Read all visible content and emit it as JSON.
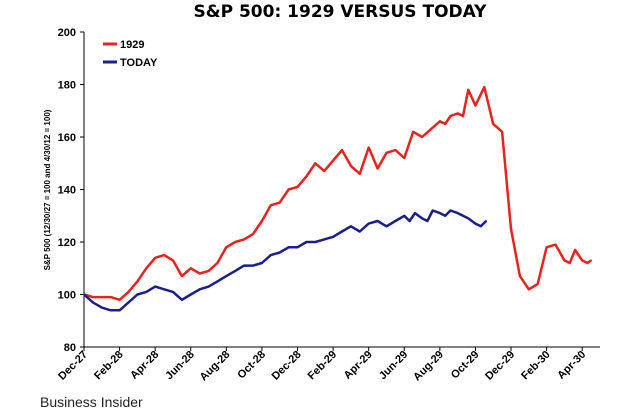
{
  "chart_data": {
    "type": "line",
    "title": "S&P 500: 1929 VERSUS TODAY",
    "ylabel": "S&P 500 (12/30/27 = 100 and 4/30/12 = 100)",
    "xlabel": "",
    "ylim": [
      80,
      200
    ],
    "yticks": [
      80,
      100,
      120,
      140,
      160,
      180,
      200
    ],
    "xlim": [
      0,
      29
    ],
    "categories": [
      "Dec-27",
      "Feb-28",
      "Apr-28",
      "Jun-28",
      "Aug-28",
      "Oct-28",
      "Dec-28",
      "Feb-29",
      "Apr-29",
      "Jun-29",
      "Aug-29",
      "Oct-29",
      "Dec-29",
      "Feb-30",
      "Apr-30"
    ],
    "legend_position": "top-left",
    "series": [
      {
        "name": "1929",
        "color": "#e8231e",
        "x": [
          0,
          0.5,
          1,
          1.5,
          2,
          2.5,
          3,
          3.5,
          4,
          4.5,
          5,
          5.5,
          6,
          6.5,
          7,
          7.5,
          8,
          8.5,
          9,
          9.5,
          10,
          10.5,
          11,
          11.5,
          12,
          12.5,
          13,
          13.5,
          14,
          14.5,
          15,
          15.5,
          16,
          16.5,
          17,
          17.5,
          18,
          18.5,
          19,
          19.5,
          20,
          20.3,
          20.6,
          21,
          21.3,
          21.6,
          22,
          22.5,
          23,
          23.5,
          24,
          24.5,
          25,
          25.5,
          26,
          26.5,
          27,
          27.3,
          27.6,
          28,
          28.3,
          28.5
        ],
        "values": [
          100,
          99,
          99,
          99,
          98,
          101,
          105,
          110,
          114,
          115,
          113,
          107,
          110,
          108,
          109,
          112,
          118,
          120,
          121,
          123,
          128,
          134,
          135,
          140,
          141,
          145,
          150,
          147,
          151,
          155,
          149,
          146,
          156,
          148,
          154,
          155,
          152,
          162,
          160,
          163,
          166,
          165,
          168,
          169,
          168,
          178,
          172,
          179,
          165,
          162,
          125,
          107,
          102,
          104,
          118,
          119,
          113,
          112,
          117,
          113,
          112,
          113
        ]
      },
      {
        "name": "TODAY",
        "color": "#1a1f8c",
        "x": [
          0,
          0.5,
          1,
          1.5,
          2,
          2.5,
          3,
          3.5,
          4,
          4.5,
          5,
          5.5,
          6,
          6.5,
          7,
          7.5,
          8,
          8.5,
          9,
          9.5,
          10,
          10.5,
          11,
          11.5,
          12,
          12.5,
          13,
          13.5,
          14,
          14.5,
          15,
          15.5,
          16,
          16.5,
          17,
          17.5,
          18,
          18.3,
          18.6,
          19,
          19.3,
          19.6,
          20,
          20.3,
          20.6,
          21,
          21.3,
          21.6,
          22,
          22.3,
          22.6
        ],
        "values": [
          100,
          97,
          95,
          94,
          94,
          97,
          100,
          101,
          103,
          102,
          101,
          98,
          100,
          102,
          103,
          105,
          107,
          109,
          111,
          111,
          112,
          115,
          116,
          118,
          118,
          120,
          120,
          121,
          122,
          124,
          126,
          124,
          127,
          128,
          126,
          128,
          130,
          128,
          131,
          129,
          128,
          132,
          131,
          130,
          132,
          131,
          130,
          129,
          127,
          126,
          128
        ]
      }
    ],
    "source": "Business Insider"
  }
}
